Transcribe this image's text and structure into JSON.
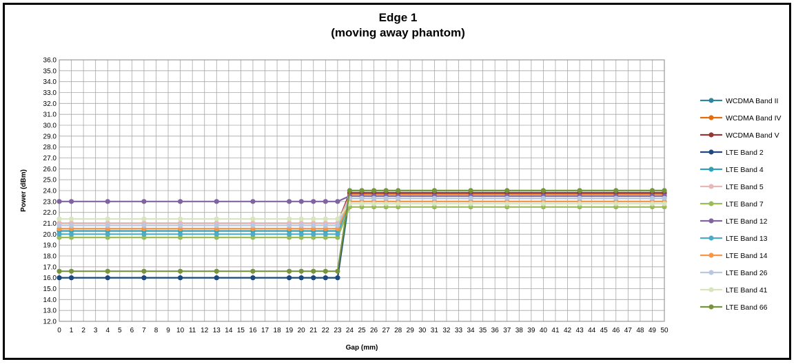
{
  "chart_data": {
    "type": "line",
    "title": "Edge 1",
    "subtitle": "(moving away phantom)",
    "xlabel": "Gap (mm)",
    "ylabel": "Power (dBm)",
    "x": [
      0,
      1,
      4,
      7,
      10,
      13,
      16,
      19,
      20,
      21,
      22,
      23,
      24,
      25,
      26,
      27,
      28,
      31,
      34,
      37,
      40,
      43,
      46,
      49,
      50
    ],
    "x_ticks": [
      0,
      1,
      2,
      3,
      4,
      5,
      6,
      7,
      8,
      9,
      10,
      11,
      12,
      13,
      14,
      15,
      16,
      17,
      18,
      19,
      20,
      21,
      22,
      23,
      24,
      25,
      26,
      27,
      28,
      29,
      30,
      31,
      32,
      33,
      34,
      35,
      36,
      37,
      38,
      39,
      40,
      41,
      42,
      43,
      44,
      45,
      46,
      47,
      48,
      49,
      50
    ],
    "ylim": [
      12.0,
      36.0
    ],
    "y_ticks": [
      "12.0",
      "13.0",
      "14.0",
      "15.0",
      "16.0",
      "17.0",
      "18.0",
      "19.0",
      "20.0",
      "21.0",
      "22.0",
      "23.0",
      "24.0",
      "25.0",
      "26.0",
      "27.0",
      "28.0",
      "29.0",
      "30.0",
      "31.0",
      "32.0",
      "33.0",
      "34.0",
      "35.0",
      "36.0"
    ],
    "grid": true,
    "legend_position": "right",
    "series": [
      {
        "name": "WCDMA Band II",
        "color": "#31849b",
        "values": [
          16.0,
          16.0,
          16.0,
          16.0,
          16.0,
          16.0,
          16.0,
          16.0,
          16.0,
          16.0,
          16.0,
          16.0,
          23.5,
          23.5,
          23.5,
          23.5,
          23.5,
          23.5,
          23.5,
          23.5,
          23.5,
          23.5,
          23.5,
          23.5,
          23.5
        ]
      },
      {
        "name": "WCDMA Band IV",
        "color": "#e46c0a",
        "values": [
          20.5,
          20.5,
          20.5,
          20.5,
          20.5,
          20.5,
          20.5,
          20.5,
          20.5,
          20.5,
          20.5,
          20.5,
          23.7,
          23.7,
          23.7,
          23.7,
          23.7,
          23.7,
          23.7,
          23.7,
          23.7,
          23.7,
          23.7,
          23.7,
          23.7
        ]
      },
      {
        "name": "WCDMA Band V",
        "color": "#953735",
        "values": [
          21.0,
          21.0,
          21.0,
          21.0,
          21.0,
          21.0,
          21.0,
          21.0,
          21.0,
          21.0,
          21.0,
          21.0,
          23.8,
          23.8,
          23.8,
          23.8,
          23.8,
          23.8,
          23.8,
          23.8,
          23.8,
          23.8,
          23.8,
          23.8,
          23.8
        ]
      },
      {
        "name": "LTE Band 2",
        "color": "#1f497d",
        "values": [
          16.0,
          16.0,
          16.0,
          16.0,
          16.0,
          16.0,
          16.0,
          16.0,
          16.0,
          16.0,
          16.0,
          16.0,
          24.0,
          24.0,
          24.0,
          24.0,
          24.0,
          24.0,
          24.0,
          24.0,
          24.0,
          24.0,
          24.0,
          24.0,
          24.0
        ]
      },
      {
        "name": "LTE Band 4",
        "color": "#31a0b6",
        "values": [
          20.3,
          20.3,
          20.3,
          20.3,
          20.3,
          20.3,
          20.3,
          20.3,
          20.3,
          20.3,
          20.3,
          20.3,
          23.3,
          23.3,
          23.3,
          23.3,
          23.3,
          23.3,
          23.3,
          23.3,
          23.3,
          23.3,
          23.3,
          23.3,
          23.3
        ]
      },
      {
        "name": "LTE Band 5",
        "color": "#e6b9b8",
        "values": [
          21.0,
          21.0,
          21.0,
          21.0,
          21.0,
          21.0,
          21.0,
          21.0,
          21.0,
          21.0,
          21.0,
          21.0,
          23.5,
          23.5,
          23.5,
          23.5,
          23.5,
          23.5,
          23.5,
          23.5,
          23.5,
          23.5,
          23.5,
          23.5,
          23.5
        ]
      },
      {
        "name": "LTE Band 7",
        "color": "#9bbb59",
        "values": [
          19.7,
          19.7,
          19.7,
          19.7,
          19.7,
          19.7,
          19.7,
          19.7,
          19.7,
          19.7,
          19.7,
          19.7,
          22.5,
          22.5,
          22.5,
          22.5,
          22.5,
          22.5,
          22.5,
          22.5,
          22.5,
          22.5,
          22.5,
          22.5,
          22.5
        ]
      },
      {
        "name": "LTE Band 12",
        "color": "#8064a2",
        "values": [
          23.0,
          23.0,
          23.0,
          23.0,
          23.0,
          23.0,
          23.0,
          23.0,
          23.0,
          23.0,
          23.0,
          23.0,
          23.5,
          23.5,
          23.5,
          23.5,
          23.5,
          23.5,
          23.5,
          23.5,
          23.5,
          23.5,
          23.5,
          23.5,
          23.5
        ]
      },
      {
        "name": "LTE Band 13",
        "color": "#4bacc6",
        "values": [
          20.0,
          20.0,
          20.0,
          20.0,
          20.0,
          20.0,
          20.0,
          20.0,
          20.0,
          20.0,
          20.0,
          20.0,
          23.0,
          23.0,
          23.0,
          23.0,
          23.0,
          23.0,
          23.0,
          23.0,
          23.0,
          23.0,
          23.0,
          23.0,
          23.0
        ]
      },
      {
        "name": "LTE Band 14",
        "color": "#f79646",
        "values": [
          20.5,
          20.5,
          20.5,
          20.5,
          20.5,
          20.5,
          20.5,
          20.5,
          20.5,
          20.5,
          20.5,
          20.5,
          23.0,
          23.0,
          23.0,
          23.0,
          23.0,
          23.0,
          23.0,
          23.0,
          23.0,
          23.0,
          23.0,
          23.0,
          23.0
        ]
      },
      {
        "name": "LTE Band 26",
        "color": "#b9c7e0",
        "values": [
          20.8,
          20.8,
          20.8,
          20.8,
          20.8,
          20.8,
          20.8,
          20.8,
          20.8,
          20.8,
          20.8,
          20.8,
          23.3,
          23.3,
          23.3,
          23.3,
          23.3,
          23.3,
          23.3,
          23.3,
          23.3,
          23.3,
          23.3,
          23.3,
          23.3
        ]
      },
      {
        "name": "LTE Band 41",
        "color": "#d7e4bd",
        "values": [
          21.4,
          21.4,
          21.4,
          21.4,
          21.4,
          21.4,
          21.4,
          21.4,
          21.4,
          21.4,
          21.4,
          21.4,
          22.8,
          22.8,
          22.8,
          22.8,
          22.8,
          22.8,
          22.8,
          22.8,
          22.8,
          22.8,
          22.8,
          22.8,
          22.8
        ]
      },
      {
        "name": "LTE Band 66",
        "color": "#77933c",
        "values": [
          16.6,
          16.6,
          16.6,
          16.6,
          16.6,
          16.6,
          16.6,
          16.6,
          16.6,
          16.6,
          16.6,
          16.6,
          24.0,
          24.0,
          24.0,
          24.0,
          24.0,
          24.0,
          24.0,
          24.0,
          24.0,
          24.0,
          24.0,
          24.0,
          24.0
        ]
      }
    ]
  }
}
